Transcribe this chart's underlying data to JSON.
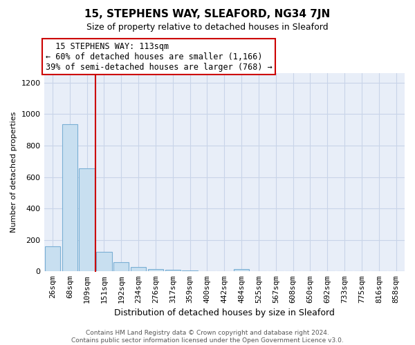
{
  "title": "15, STEPHENS WAY, SLEAFORD, NG34 7JN",
  "subtitle": "Size of property relative to detached houses in Sleaford",
  "xlabel": "Distribution of detached houses by size in Sleaford",
  "ylabel": "Number of detached properties",
  "bar_labels": [
    "26sqm",
    "68sqm",
    "109sqm",
    "151sqm",
    "192sqm",
    "234sqm",
    "276sqm",
    "317sqm",
    "359sqm",
    "400sqm",
    "442sqm",
    "484sqm",
    "525sqm",
    "567sqm",
    "608sqm",
    "650sqm",
    "692sqm",
    "733sqm",
    "775sqm",
    "816sqm",
    "858sqm"
  ],
  "bar_values": [
    160,
    935,
    655,
    125,
    60,
    28,
    15,
    8,
    5,
    0,
    0,
    15,
    0,
    0,
    0,
    0,
    0,
    0,
    0,
    0,
    0
  ],
  "bar_color": "#c8dff0",
  "bar_edge_color": "#7aafd4",
  "vline_x_bar_index": 2,
  "vline_color": "#cc0000",
  "annotation_title": "15 STEPHENS WAY: 113sqm",
  "annotation_line1": "← 60% of detached houses are smaller (1,166)",
  "annotation_line2": "39% of semi-detached houses are larger (768) →",
  "annotation_box_color": "#ffffff",
  "annotation_box_edge": "#cc0000",
  "ylim": [
    0,
    1260
  ],
  "yticks": [
    0,
    200,
    400,
    600,
    800,
    1000,
    1200
  ],
  "footer_line1": "Contains HM Land Registry data © Crown copyright and database right 2024.",
  "footer_line2": "Contains public sector information licensed under the Open Government Licence v3.0.",
  "background_color": "#ffffff",
  "grid_color": "#c8d4e8",
  "title_fontsize": 11,
  "subtitle_fontsize": 9,
  "xlabel_fontsize": 9,
  "ylabel_fontsize": 8,
  "tick_fontsize": 8,
  "annotation_fontsize": 8.5,
  "footer_fontsize": 6.5
}
